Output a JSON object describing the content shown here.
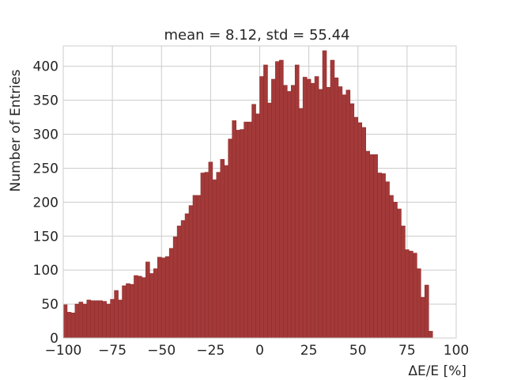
{
  "chart_data": {
    "type": "bar",
    "title": "mean = 8.12, std = 55.44",
    "xlabel": "ΔE/E [%]",
    "ylabel": "Number of Entries",
    "xlim": [
      -100,
      100
    ],
    "ylim": [
      0,
      430
    ],
    "xticks": [
      -100,
      -75,
      -50,
      -25,
      0,
      25,
      50,
      75,
      100
    ],
    "xtick_labels": [
      "−100",
      "−75",
      "−50",
      "−25",
      "0",
      "25",
      "50",
      "75",
      "100"
    ],
    "yticks": [
      0,
      50,
      100,
      150,
      200,
      250,
      300,
      350,
      400
    ],
    "grid": true,
    "bin_start": -100,
    "bin_width": 2,
    "values": [
      49,
      38,
      37,
      50,
      53,
      50,
      56,
      55,
      55,
      55,
      54,
      50,
      57,
      70,
      56,
      77,
      80,
      79,
      92,
      91,
      89,
      112,
      95,
      102,
      119,
      118,
      120,
      132,
      149,
      165,
      173,
      183,
      195,
      210,
      210,
      243,
      244,
      259,
      233,
      244,
      263,
      254,
      293,
      320,
      306,
      307,
      318,
      318,
      344,
      330,
      385,
      402,
      346,
      381,
      407,
      409,
      372,
      363,
      372,
      402,
      338,
      384,
      381,
      375,
      385,
      366,
      423,
      369,
      409,
      383,
      370,
      358,
      365,
      345,
      325,
      317,
      310,
      275,
      270,
      270,
      243,
      242,
      230,
      210,
      200,
      190,
      165,
      130,
      128,
      125,
      102,
      60,
      78,
      10
    ]
  }
}
